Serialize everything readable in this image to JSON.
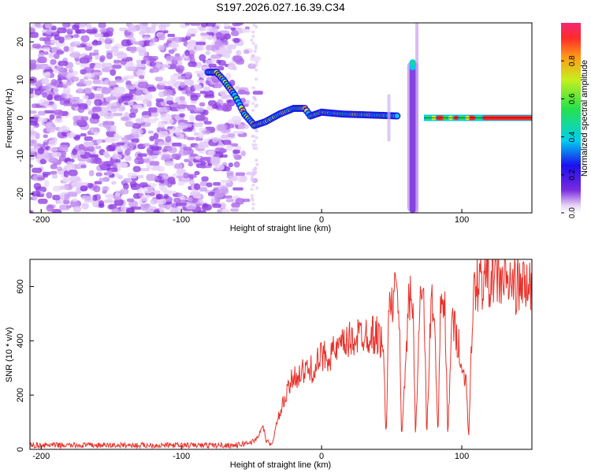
{
  "title": "S197.2026.027.16.39.C34",
  "chart_data": [
    {
      "type": "heatmap",
      "xlabel": "Height of straight line (km)",
      "ylabel": "Frequency (Hz)",
      "xlim": [
        -208,
        150
      ],
      "ylim": [
        -25,
        25
      ],
      "xticks": [
        -200,
        -100,
        0,
        100
      ],
      "yticks": [
        -20,
        -10,
        0,
        10,
        20
      ],
      "ridge": [
        {
          "x": -81,
          "y": 12
        },
        {
          "x": -75,
          "y": 12
        },
        {
          "x": -70,
          "y": 10
        },
        {
          "x": -62,
          "y": 6
        },
        {
          "x": -55,
          "y": 1
        },
        {
          "x": -48,
          "y": -2
        },
        {
          "x": -40,
          "y": -1
        },
        {
          "x": -30,
          "y": 1
        },
        {
          "x": -20,
          "y": 2.5
        },
        {
          "x": -12,
          "y": 2.5
        },
        {
          "x": -8,
          "y": 0.5
        },
        {
          "x": 0,
          "y": 1.5
        },
        {
          "x": 15,
          "y": 1
        },
        {
          "x": 55,
          "y": 0.5
        }
      ],
      "spike": {
        "x": 65,
        "ymin": -25,
        "ymax": 15
      },
      "segments": [
        {
          "x0": 73,
          "x1": 150,
          "y": 0
        },
        {
          "x0": 82,
          "x1": 88,
          "y": 0
        },
        {
          "x0": 103,
          "x1": 108,
          "y": 0
        },
        {
          "x0": 115,
          "x1": 150,
          "y": 0
        }
      ],
      "colorbar": {
        "label": "Normalized spectral amplitude",
        "range": [
          0,
          1
        ],
        "ticks": [
          "0.0",
          "0.2",
          "0.4",
          "0.6",
          "0.8"
        ],
        "tick_values": [
          0.0,
          0.2,
          0.4,
          0.6,
          0.8
        ]
      }
    },
    {
      "type": "line",
      "xlabel": "Height of straight line (km)",
      "ylabel": "SNR (10 * v/v)",
      "xlim": [
        -208,
        150
      ],
      "ylim": [
        0,
        700
      ],
      "xticks": [
        -200,
        -100,
        0,
        100
      ],
      "yticks": [
        0,
        200,
        400,
        600
      ],
      "color": "#e8312a",
      "series": [
        {
          "name": "SNR",
          "x": [
            -208,
            -150,
            -100,
            -60,
            -48,
            -44,
            -42,
            -40,
            -36,
            -30,
            -20,
            -10,
            -5,
            0,
            10,
            20,
            30,
            40,
            44,
            46,
            48,
            52,
            55,
            57,
            62,
            65,
            67,
            70,
            73,
            75,
            78,
            80,
            83,
            85,
            88,
            90,
            93,
            96,
            98,
            100,
            103,
            105,
            108,
            110,
            112,
            115,
            118,
            122,
            130,
            140,
            150
          ],
          "y": [
            15,
            15,
            15,
            15,
            30,
            60,
            90,
            40,
            10,
            130,
            270,
            290,
            300,
            340,
            360,
            400,
            430,
            420,
            380,
            40,
            510,
            560,
            580,
            40,
            530,
            560,
            40,
            540,
            560,
            40,
            540,
            540,
            40,
            540,
            530,
            40,
            480,
            420,
            400,
            270,
            270,
            40,
            560,
            600,
            620,
            620,
            630,
            640,
            620,
            600,
            600
          ]
        }
      ]
    }
  ]
}
